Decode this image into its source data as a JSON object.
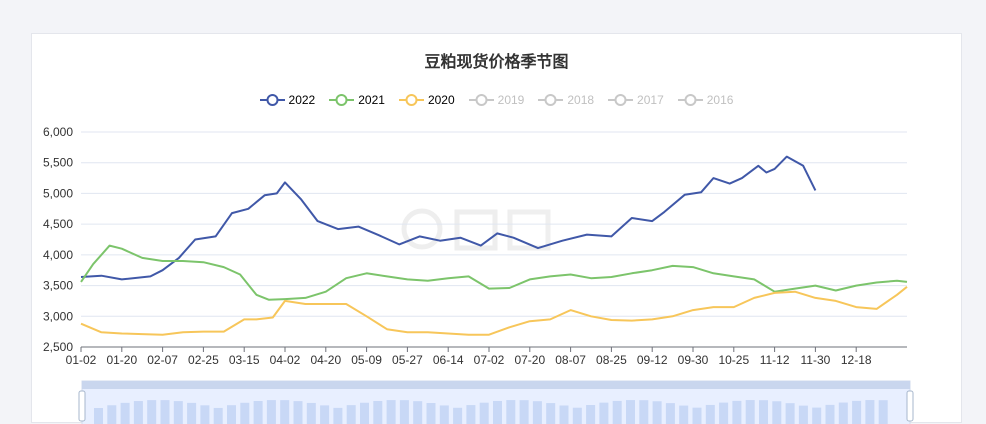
{
  "chart_data": {
    "type": "line",
    "title": "豆粕现货价格季节图",
    "xlabel": "",
    "ylabel": "",
    "ylim": [
      2500,
      6000
    ],
    "y_ticks": [
      "2,500",
      "3,000",
      "3,500",
      "4,000",
      "4,500",
      "5,000",
      "5,500",
      "6,000"
    ],
    "x_ticks": [
      "01-02",
      "01-20",
      "02-07",
      "02-25",
      "03-15",
      "04-02",
      "04-20",
      "05-09",
      "05-27",
      "06-14",
      "07-02",
      "07-20",
      "08-07",
      "08-25",
      "09-12",
      "09-30",
      "10-25",
      "11-12",
      "11-30",
      "12-18"
    ],
    "grid": true,
    "legend_position": "top-center",
    "legend": [
      {
        "name": "2022",
        "color": "#4058a8",
        "active": true
      },
      {
        "name": "2021",
        "color": "#7cc46b",
        "active": true
      },
      {
        "name": "2020",
        "color": "#f7c65a",
        "active": true
      },
      {
        "name": "2019",
        "color": "#c8c8c8",
        "active": false
      },
      {
        "name": "2018",
        "color": "#c8c8c8",
        "active": false
      },
      {
        "name": "2017",
        "color": "#c8c8c8",
        "active": false
      },
      {
        "name": "2016",
        "color": "#c8c8c8",
        "active": false
      }
    ],
    "series": [
      {
        "name": "2022",
        "color": "#4058a8",
        "x": [
          0,
          0.5,
          1,
          1.7,
          2,
          2.4,
          2.8,
          3.3,
          3.7,
          4.1,
          4.5,
          4.8,
          5,
          5.4,
          5.8,
          6.3,
          6.8,
          7.3,
          7.8,
          8.3,
          8.8,
          9.3,
          9.8,
          10.2,
          10.6,
          11.2,
          11.8,
          12.4,
          13,
          13.5,
          14,
          14.3,
          14.8,
          15.2,
          15.5,
          15.9,
          16.2,
          16.6,
          16.8,
          17,
          17.3,
          17.7,
          18
        ],
        "y": [
          3640,
          3660,
          3600,
          3650,
          3750,
          3950,
          4250,
          4300,
          4680,
          4750,
          4970,
          5000,
          5180,
          4900,
          4550,
          4420,
          4460,
          4320,
          4170,
          4300,
          4230,
          4280,
          4150,
          4350,
          4280,
          4110,
          4230,
          4330,
          4300,
          4600,
          4550,
          4700,
          4980,
          5020,
          5250,
          5160,
          5250,
          5450,
          5340,
          5400,
          5600,
          5450,
          5050
        ]
      },
      {
        "name": "2021",
        "color": "#7cc46b",
        "x": [
          0,
          0.3,
          0.7,
          1,
          1.5,
          2,
          2.5,
          3,
          3.5,
          3.9,
          4.3,
          4.6,
          5,
          5.5,
          6,
          6.5,
          7,
          7.5,
          8,
          8.5,
          9,
          9.5,
          10,
          10.5,
          11,
          11.5,
          12,
          12.5,
          13,
          13.5,
          14,
          14.5,
          15,
          15.5,
          16,
          16.5,
          17,
          17.5,
          18,
          18.5,
          19,
          19.5,
          20,
          20.3
        ],
        "y": [
          3560,
          3850,
          4150,
          4100,
          3950,
          3900,
          3900,
          3880,
          3800,
          3680,
          3350,
          3270,
          3280,
          3300,
          3400,
          3620,
          3700,
          3650,
          3600,
          3580,
          3620,
          3650,
          3450,
          3460,
          3600,
          3650,
          3680,
          3620,
          3640,
          3700,
          3750,
          3820,
          3800,
          3700,
          3650,
          3600,
          3400,
          3450,
          3500,
          3420,
          3500,
          3550,
          3580,
          3560
        ]
      },
      {
        "name": "2020",
        "color": "#f7c65a",
        "x": [
          0,
          0.5,
          1,
          1.5,
          2,
          2.5,
          3,
          3.5,
          4,
          4.3,
          4.7,
          5,
          5.5,
          6,
          6.5,
          7,
          7.5,
          8,
          8.5,
          9,
          9.5,
          10,
          10.5,
          11,
          11.5,
          12,
          12.5,
          13,
          13.5,
          14,
          14.5,
          15,
          15.5,
          16,
          16.5,
          17,
          17.5,
          18,
          18.5,
          19,
          19.5,
          20,
          20.3
        ],
        "y": [
          2880,
          2740,
          2720,
          2710,
          2700,
          2740,
          2750,
          2750,
          2950,
          2950,
          2980,
          3250,
          3200,
          3200,
          3200,
          3000,
          2790,
          2740,
          2740,
          2720,
          2700,
          2700,
          2820,
          2920,
          2950,
          3100,
          3000,
          2940,
          2930,
          2950,
          3000,
          3100,
          3150,
          3150,
          3300,
          3380,
          3400,
          3300,
          3250,
          3150,
          3120,
          3350,
          3480
        ]
      }
    ]
  }
}
